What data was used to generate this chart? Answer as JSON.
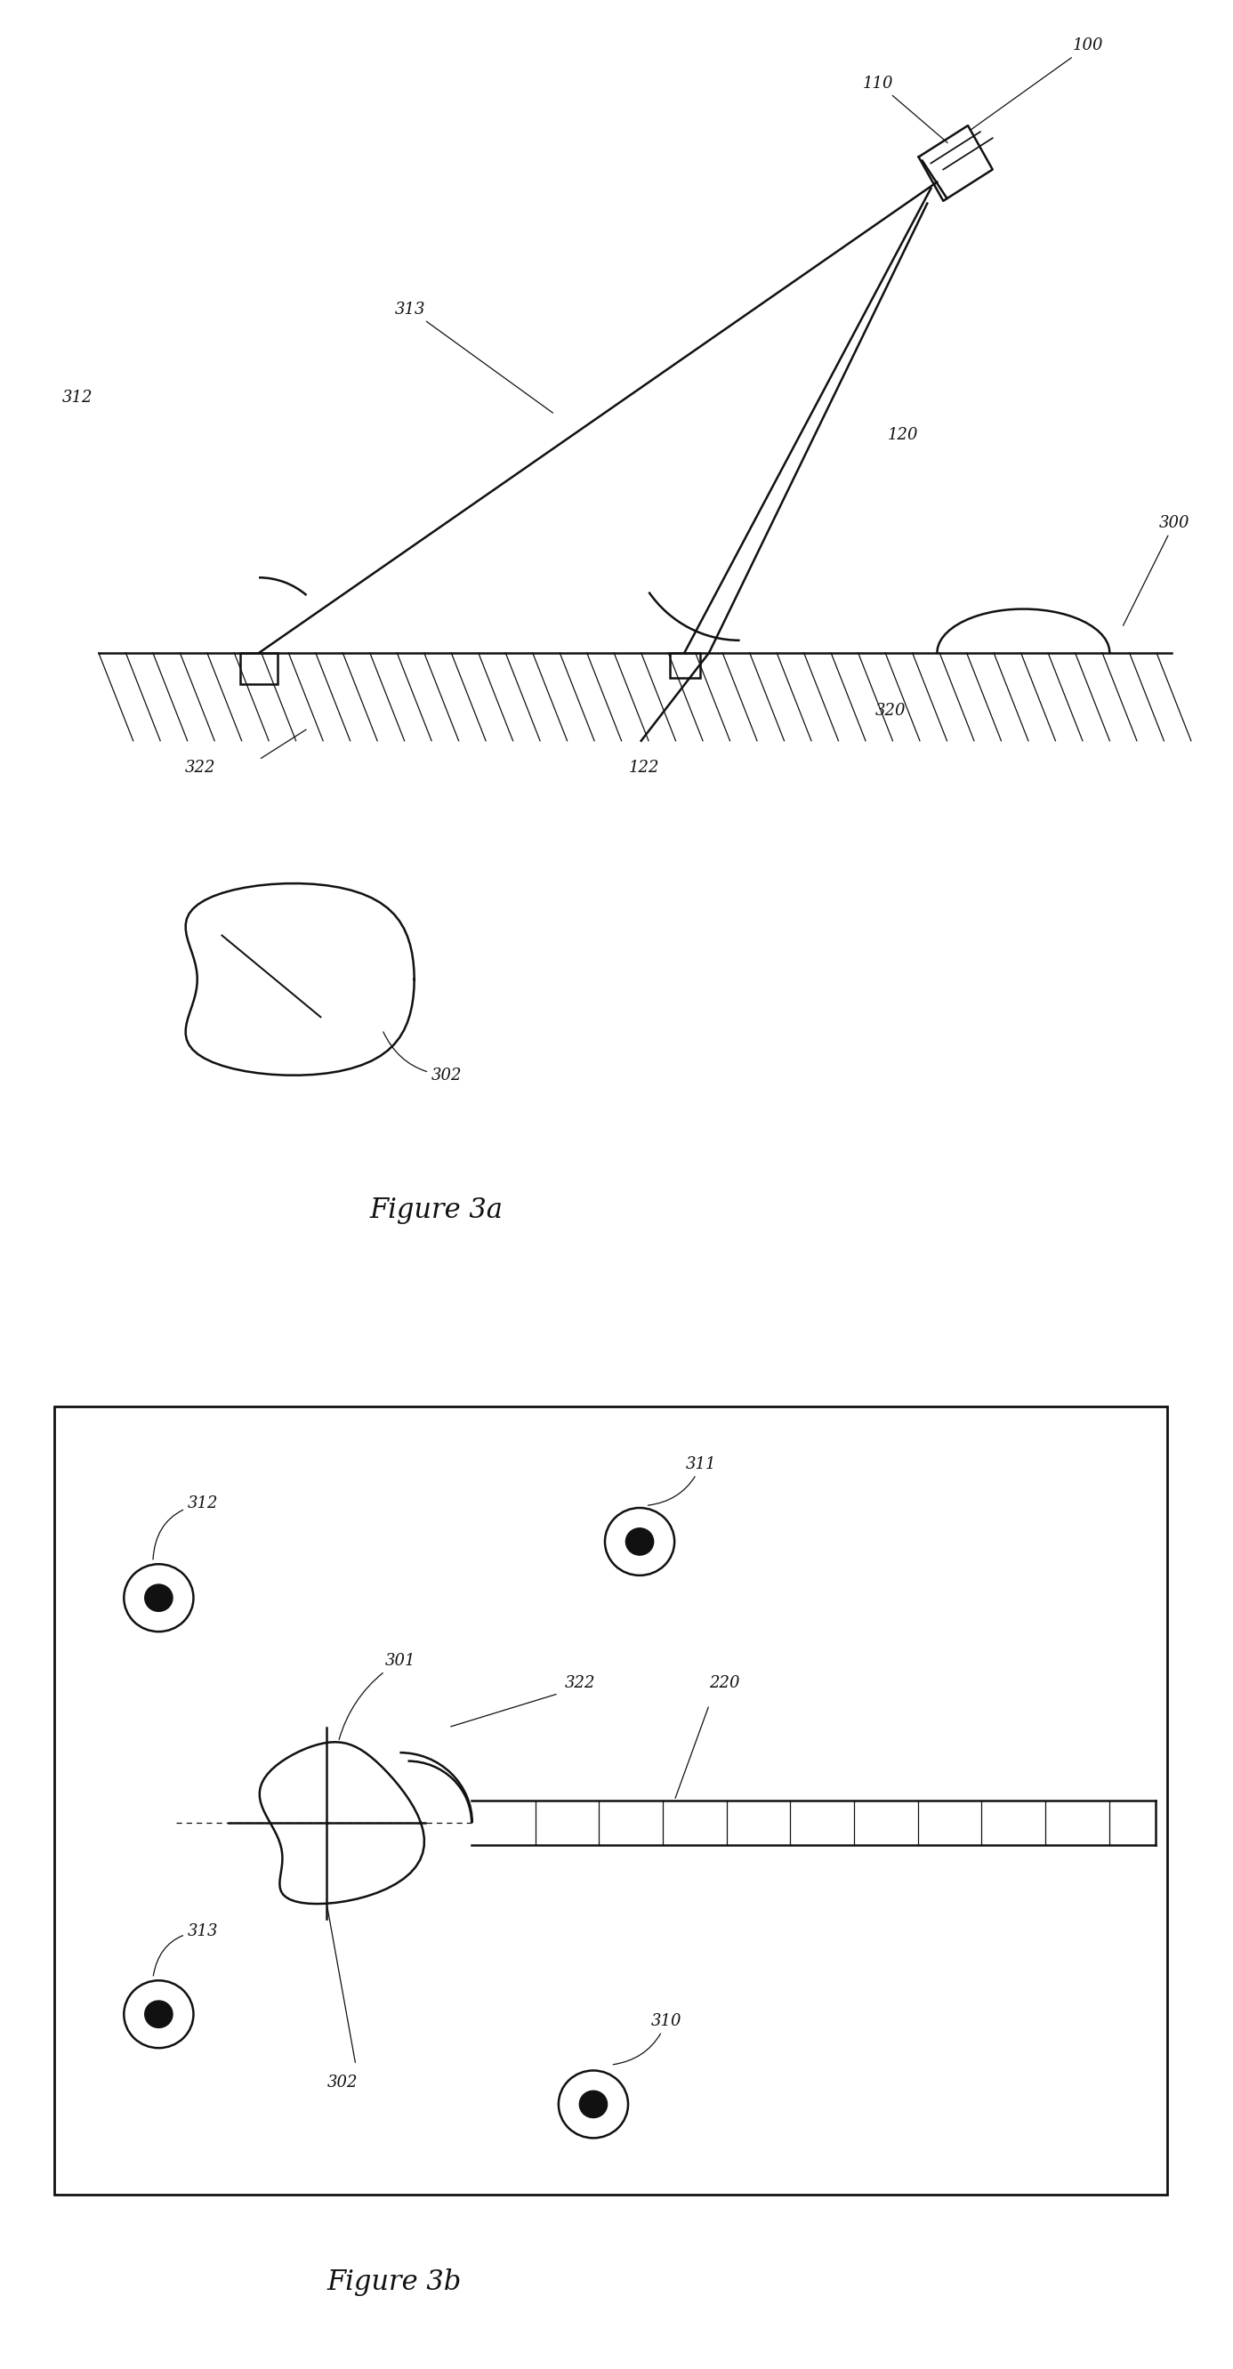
{
  "bg_color": "#ffffff",
  "fig_width": 13.86,
  "fig_height": 26.63,
  "fig3a_caption": "Figure 3a",
  "fig3b_caption": "Figure 3b",
  "lw": 1.8,
  "lc": "#111111"
}
